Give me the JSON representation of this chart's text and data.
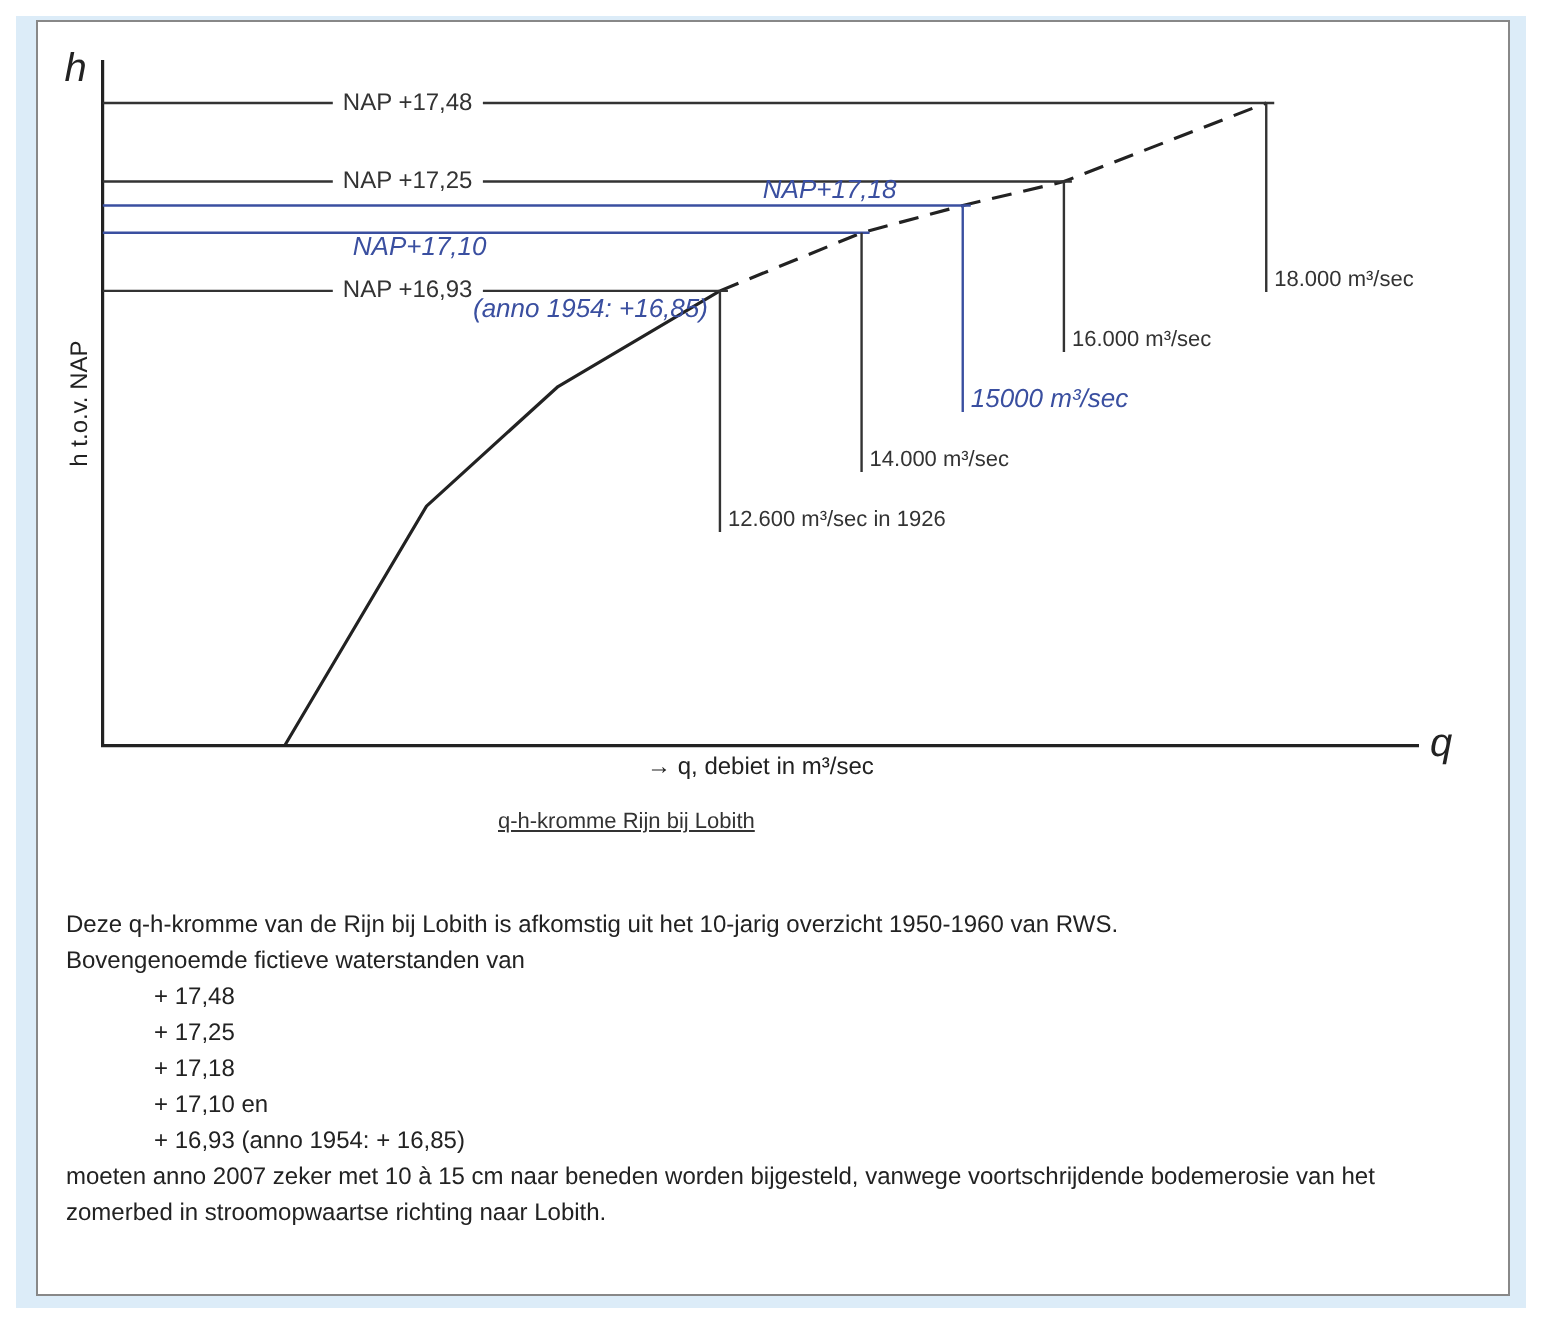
{
  "chart_data": {
    "type": "line",
    "title": "q-h-kromme Rijn bij Lobith",
    "xlabel": "→ q, debiet in m³/sec",
    "ylabel": "h t.o.v. NAP",
    "xlim": [
      6500,
      19500
    ],
    "ylim": [
      15.6,
      17.6
    ],
    "yticks": [
      {
        "value": 17.48,
        "label": "NAP +17,48"
      },
      {
        "value": 17.25,
        "label": "NAP +17,25"
      },
      {
        "value": 16.93,
        "label": "NAP +16,93"
      }
    ],
    "tick_labels": "y",
    "grid": "y",
    "legend": false,
    "series": [
      {
        "x": [
          8300,
          8900,
          9700,
          11000,
          12600
        ],
        "values": [
          15.6,
          15.9,
          16.3,
          16.65,
          16.93
        ],
        "color": "#222222",
        "line_style": "solid"
      },
      {
        "x": [
          12600,
          14000,
          15000,
          16000,
          18000
        ],
        "values": [
          16.93,
          17.1,
          17.18,
          17.25,
          17.48
        ],
        "color": "#222222",
        "line_style": "dashed"
      }
    ],
    "ref_lines": [
      {
        "axis": "y",
        "value": 17.25
      },
      {
        "axis": "y",
        "value": 16.93
      },
      {
        "axis": "y",
        "value": 17.1,
        "label": "NAP+17,10",
        "color": "#3a4fa0"
      },
      {
        "axis": "y",
        "value": 17.18,
        "label": "NAP+17,18",
        "color": "#3a4fa0"
      },
      {
        "axis": "x",
        "value": 12600,
        "label": "12.600 m³/sec in 1926"
      },
      {
        "axis": "x",
        "value": 14000,
        "label": "14.000 m³/sec"
      },
      {
        "axis": "x",
        "value": 15000,
        "label": "15000 m³/sec",
        "color": "#3a4fa0"
      },
      {
        "axis": "x",
        "value": 16000,
        "label": "16.000 m³/sec"
      },
      {
        "axis": "x",
        "value": 18000,
        "label": "18.000 m³/sec"
      }
    ],
    "annotations": [
      "h",
      "q",
      {
        "text": "(anno 1954: +16,85)",
        "x": 12600,
        "y": 16.93
      },
      "Deze q-h-kromme van de Rijn bij Lobith is afkomstig uit het 10-jarig overzicht 1950-1960 van RWS.",
      "Bovengenoemde fictieve waterstanden van",
      "+ 17,48",
      "+ 17,25",
      "+ 17,18",
      "+ 17,10 en",
      "+ 16,93 (anno 1954: + 16,85)",
      "moeten anno 2007 zeker met 10 à 15 cm naar beneden worden bijgesteld, vanwege voortschrijdende bodemerosie van het zomerbed in stroomopwaartse richting naar Lobith."
    ]
  }
}
